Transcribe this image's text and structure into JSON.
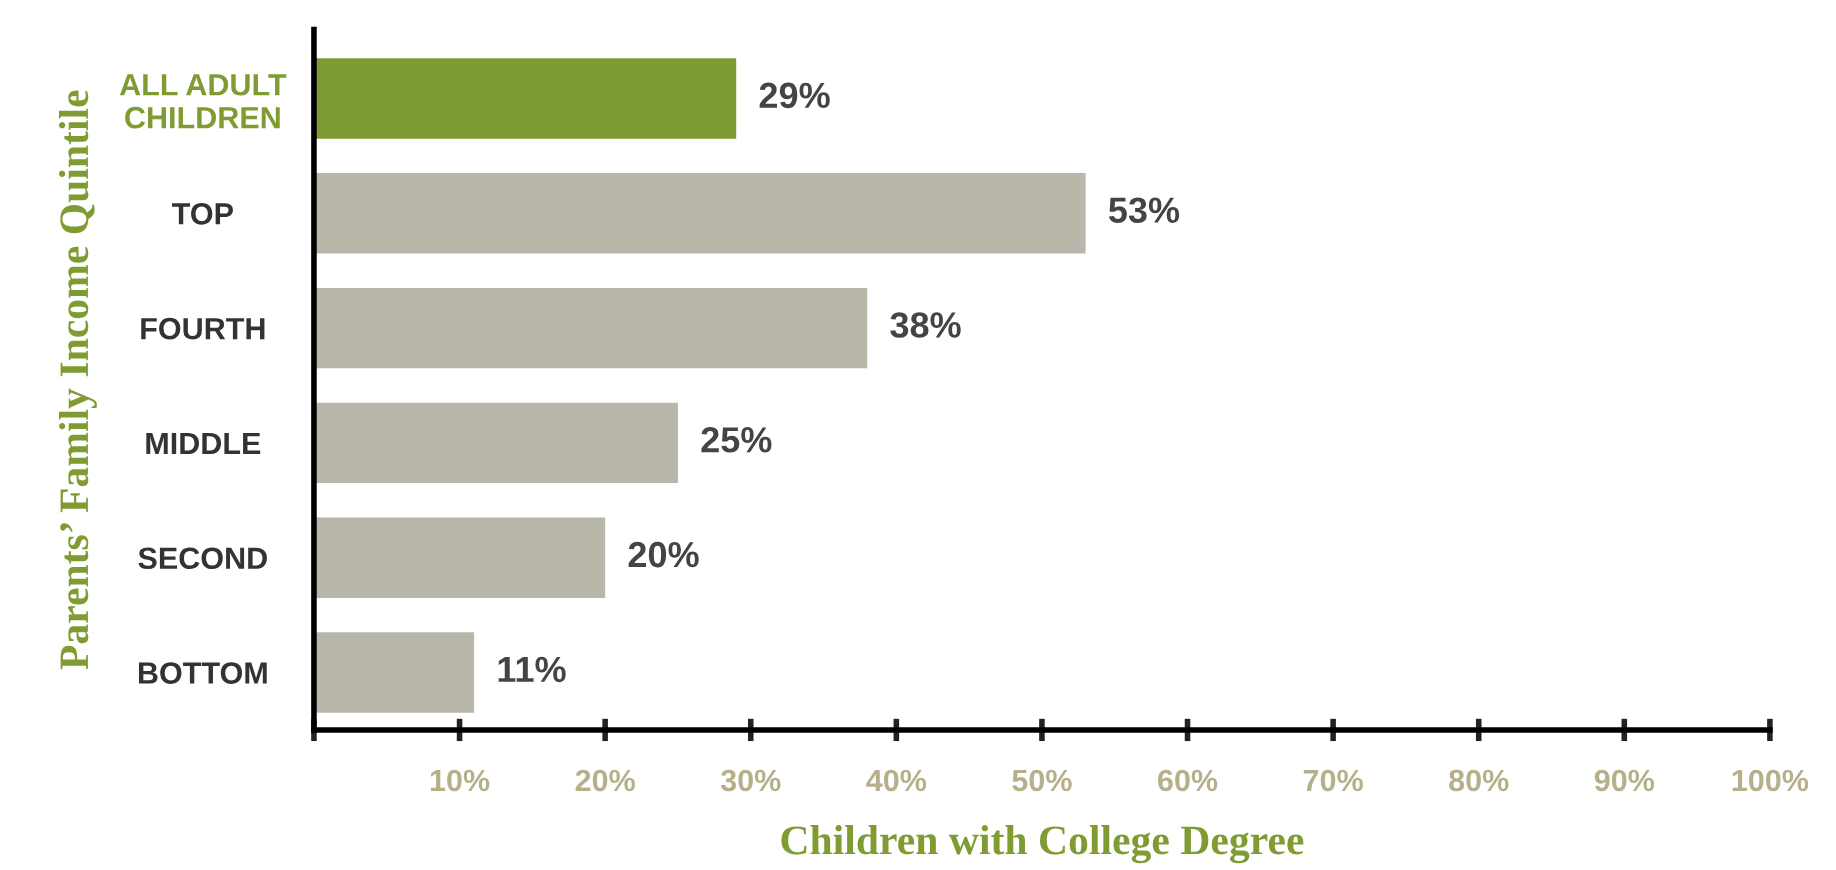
{
  "chart_data": {
    "type": "bar",
    "orientation": "horizontal",
    "xlabel": "Children with College Degree",
    "ylabel": "Parents’ Family Income Quintile",
    "categories": [
      "ALL ADULT\nCHILDREN",
      "TOP",
      "FOURTH",
      "MIDDLE",
      "SECOND",
      "BOTTOM"
    ],
    "values": [
      29,
      53,
      38,
      25,
      20,
      11
    ],
    "colors": [
      "#7f9c32",
      "#b9b6aa",
      "#b9b6aa",
      "#b9b6aa",
      "#b9b6aa",
      "#b9b6aa"
    ],
    "value_labels": [
      "29%",
      "53%",
      "38%",
      "25%",
      "20%",
      "11%"
    ],
    "xlim": [
      0,
      100
    ],
    "xticks": [
      {
        "value": 0,
        "label": null
      },
      {
        "value": 10,
        "label": "10%"
      },
      {
        "value": 20,
        "label": "20%"
      },
      {
        "value": 30,
        "label": "30%"
      },
      {
        "value": 40,
        "label": "40%"
      },
      {
        "value": 50,
        "label": "50%"
      },
      {
        "value": 60,
        "label": "60%"
      },
      {
        "value": 70,
        "label": "70%"
      },
      {
        "value": 80,
        "label": "80%"
      },
      {
        "value": 90,
        "label": "90%"
      },
      {
        "value": 100,
        "label": "100%"
      }
    ],
    "grid": false,
    "legend": false
  }
}
